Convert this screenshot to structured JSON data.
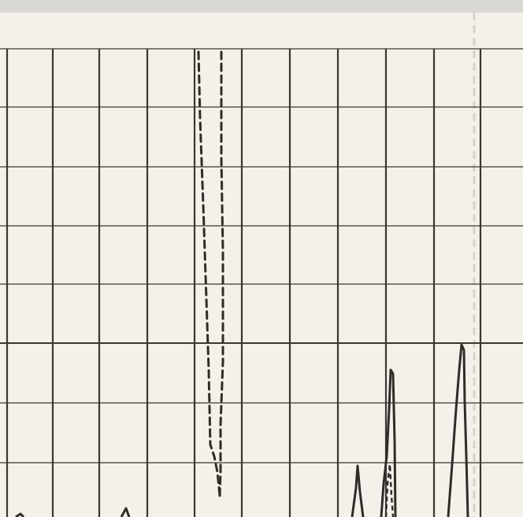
{
  "photo": {
    "subject": "strip-chart-recorder-paper",
    "colors": {
      "paper": "#f3f1e9",
      "paper_edge": "#e4e2dc",
      "top_border": "#d9d8d3",
      "grid_line": "#3a3833",
      "trace": "#2f2c2a",
      "fold_crease": "#cfcdc4"
    }
  }
}
